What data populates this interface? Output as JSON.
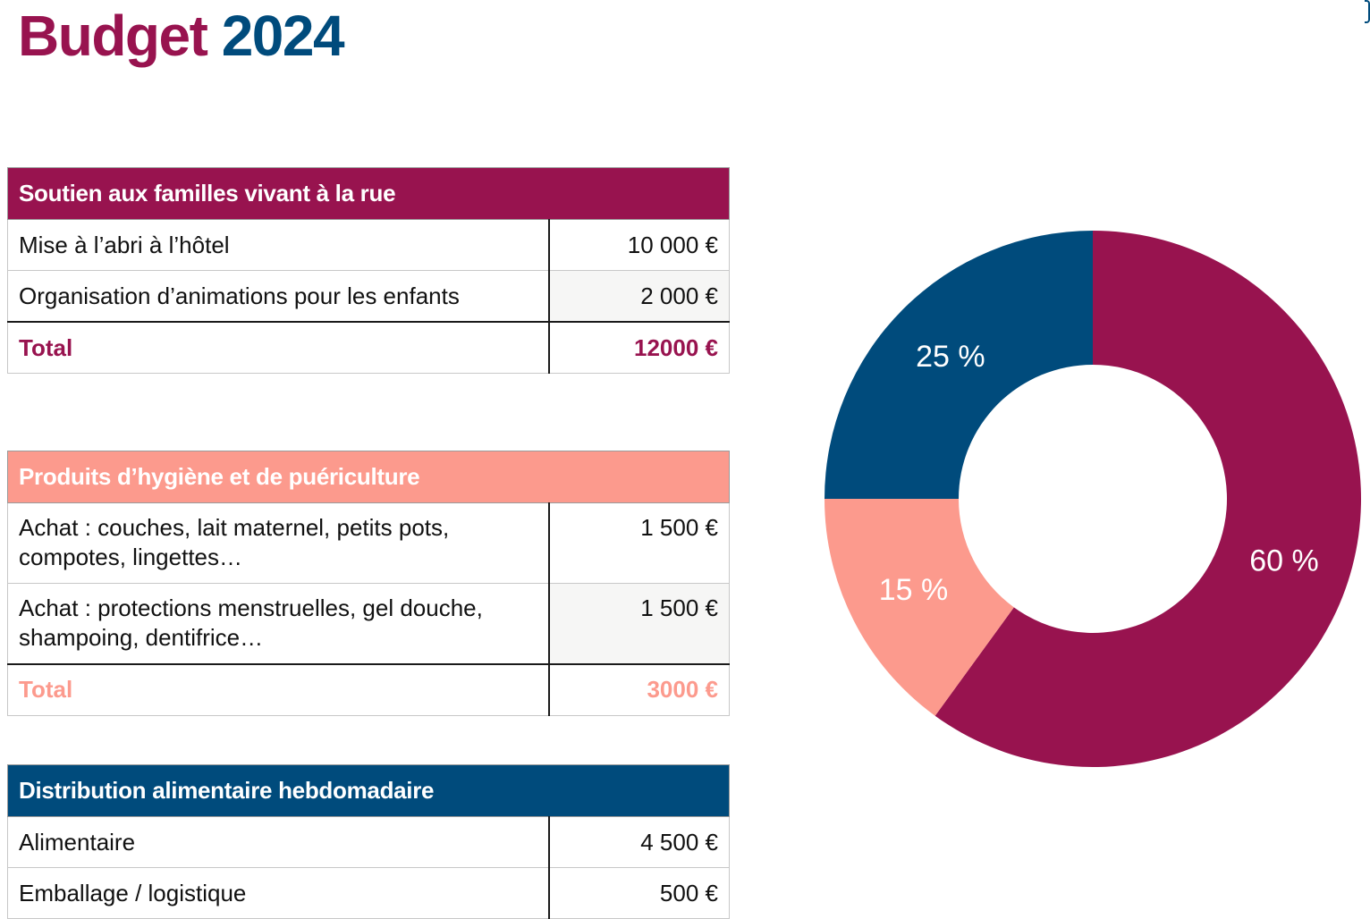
{
  "page": {
    "title_part1": "Budget",
    "title_part2": "2024"
  },
  "tables": [
    {
      "header": "Soutien aux familles vivant à la rue",
      "color": "#98134f",
      "rows": [
        {
          "label": "Mise à l’abri à l’hôtel",
          "amount": "10 000 €"
        },
        {
          "label": "Organisation d’animations pour les enfants",
          "amount": "2 000 €"
        }
      ],
      "total_label": "Total",
      "total_amount": "12000 €"
    },
    {
      "header": "Produits d’hygiène et de puériculture",
      "color": "#fc9a8d",
      "rows": [
        {
          "label": "Achat : couches, lait maternel, petits pots, compotes, lingettes…",
          "amount": "1 500 €"
        },
        {
          "label": "Achat : protections menstruelles, gel douche, shampoing, dentifrice…",
          "amount": "1 500 €"
        }
      ],
      "total_label": "Total",
      "total_amount": "3000 €"
    },
    {
      "header": "Distribution alimentaire hebdomadaire",
      "color": "#004b7c",
      "rows": [
        {
          "label": "Alimentaire",
          "amount": "4 500 €"
        },
        {
          "label": "Emballage / logistique",
          "amount": "500 €"
        }
      ]
    }
  ],
  "chart_data": {
    "type": "pie",
    "style": "donut",
    "labels": [
      "60 %",
      "15 %",
      "25 %"
    ],
    "values": [
      60,
      15,
      25
    ],
    "colors": [
      "#98134f",
      "#fc9a8d",
      "#004b7c"
    ],
    "start": "top",
    "direction": "clockwise",
    "title": "",
    "legend": "none"
  }
}
